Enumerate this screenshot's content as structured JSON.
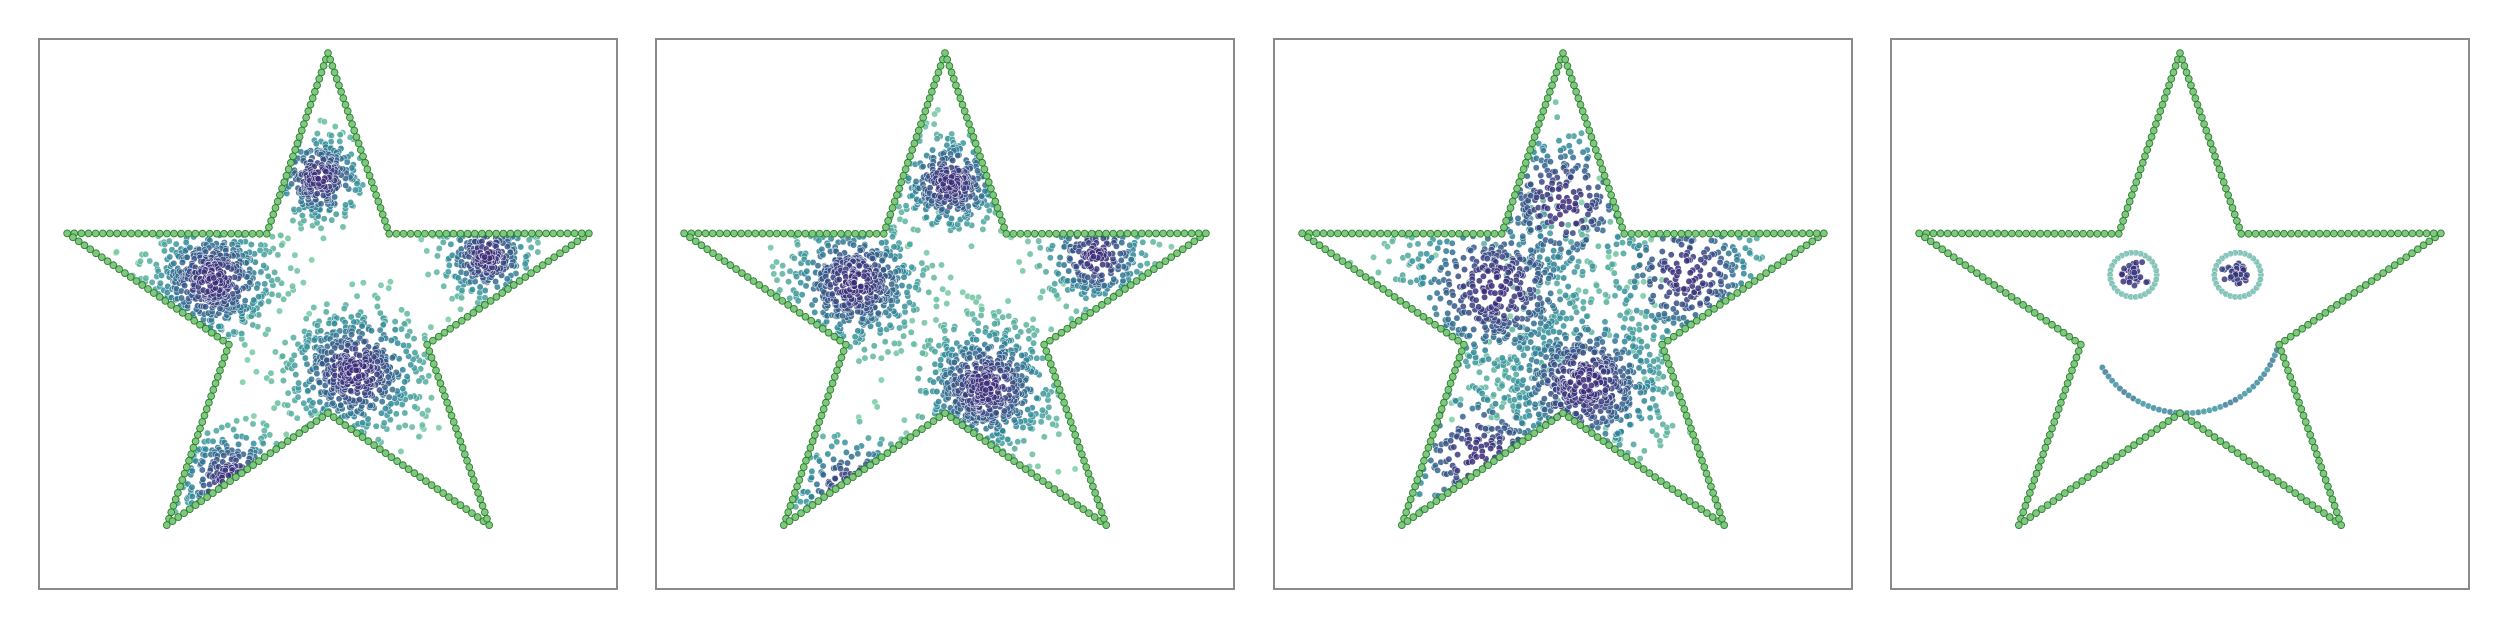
{
  "figure": {
    "colors": {
      "outline_fill": "#7fc97f",
      "outline_edge": "#2e7d32",
      "cmap_low": "#7fd3a3",
      "cmap_mid": "#2f8b9a",
      "cmap_high": "#3b2a78"
    }
  },
  "chart_data": [
    {
      "type": "scatter",
      "title": "",
      "xlabel": "",
      "ylabel": "",
      "xlim": [
        -1.05,
        1.05
      ],
      "ylim": [
        -1.05,
        1.05
      ],
      "grid": false,
      "outline": {
        "shape": "star",
        "points": 5,
        "outer_radius": 1.0,
        "inner_radius": 0.38
      },
      "series": [
        {
          "kind": "gaussian-clusters",
          "count": 1800,
          "clusters": [
            {
              "x": -0.42,
              "y": 0.13,
              "spread": 0.12,
              "weight": 0.27
            },
            {
              "x": 0.1,
              "y": -0.22,
              "spread": 0.13,
              "weight": 0.29
            },
            {
              "x": -0.35,
              "y": -0.64,
              "spread": 0.11,
              "weight": 0.16
            },
            {
              "x": 0.58,
              "y": 0.22,
              "spread": 0.09,
              "weight": 0.14
            },
            {
              "x": -0.03,
              "y": 0.52,
              "spread": 0.09,
              "weight": 0.14
            }
          ]
        }
      ]
    },
    {
      "type": "scatter",
      "title": "",
      "xlabel": "",
      "ylabel": "",
      "xlim": [
        -1.05,
        1.05
      ],
      "ylim": [
        -1.05,
        1.05
      ],
      "grid": false,
      "outline": {
        "shape": "star",
        "points": 5,
        "outer_radius": 1.0,
        "inner_radius": 0.38
      },
      "series": [
        {
          "kind": "gaussian-clusters",
          "count": 1800,
          "clusters": [
            {
              "x": -0.33,
              "y": 0.12,
              "spread": 0.13,
              "weight": 0.26
            },
            {
              "x": 0.15,
              "y": -0.28,
              "spread": 0.13,
              "weight": 0.3
            },
            {
              "x": -0.33,
              "y": -0.68,
              "spread": 0.12,
              "weight": 0.14
            },
            {
              "x": 0.55,
              "y": 0.22,
              "spread": 0.1,
              "weight": 0.14
            },
            {
              "x": 0.02,
              "y": 0.5,
              "spread": 0.1,
              "weight": 0.16
            }
          ]
        }
      ]
    },
    {
      "type": "scatter",
      "title": "",
      "xlabel": "",
      "ylabel": "",
      "xlim": [
        -1.05,
        1.05
      ],
      "ylim": [
        -1.05,
        1.05
      ],
      "grid": false,
      "outline": {
        "shape": "star",
        "points": 5,
        "outer_radius": 1.0,
        "inner_radius": 0.38
      },
      "series": [
        {
          "kind": "gaussian-clusters",
          "count": 1800,
          "clusters": [
            {
              "x": -0.25,
              "y": 0.1,
              "spread": 0.18,
              "weight": 0.25
            },
            {
              "x": 0.08,
              "y": -0.27,
              "spread": 0.16,
              "weight": 0.3
            },
            {
              "x": -0.3,
              "y": -0.55,
              "spread": 0.16,
              "weight": 0.15
            },
            {
              "x": 0.45,
              "y": 0.15,
              "spread": 0.15,
              "weight": 0.15
            },
            {
              "x": 0.0,
              "y": 0.42,
              "spread": 0.16,
              "weight": 0.15
            }
          ]
        }
      ]
    },
    {
      "type": "scatter",
      "title": "",
      "xlabel": "",
      "ylabel": "",
      "xlim": [
        -1.05,
        1.05
      ],
      "ylim": [
        -1.05,
        1.05
      ],
      "grid": false,
      "outline": {
        "shape": "star",
        "points": 5,
        "outer_radius": 1.0,
        "inner_radius": 0.38
      },
      "series": [
        {
          "kind": "face",
          "eyes": [
            {
              "x": -0.17,
              "y": 0.15,
              "ring_radius": 0.085
            },
            {
              "x": 0.21,
              "y": 0.15,
              "ring_radius": 0.085
            }
          ],
          "mouth": {
            "x": 0.02,
            "y": -0.03,
            "radius": 0.35,
            "arc_degrees": [
              -150,
              -18
            ]
          }
        }
      ]
    }
  ]
}
